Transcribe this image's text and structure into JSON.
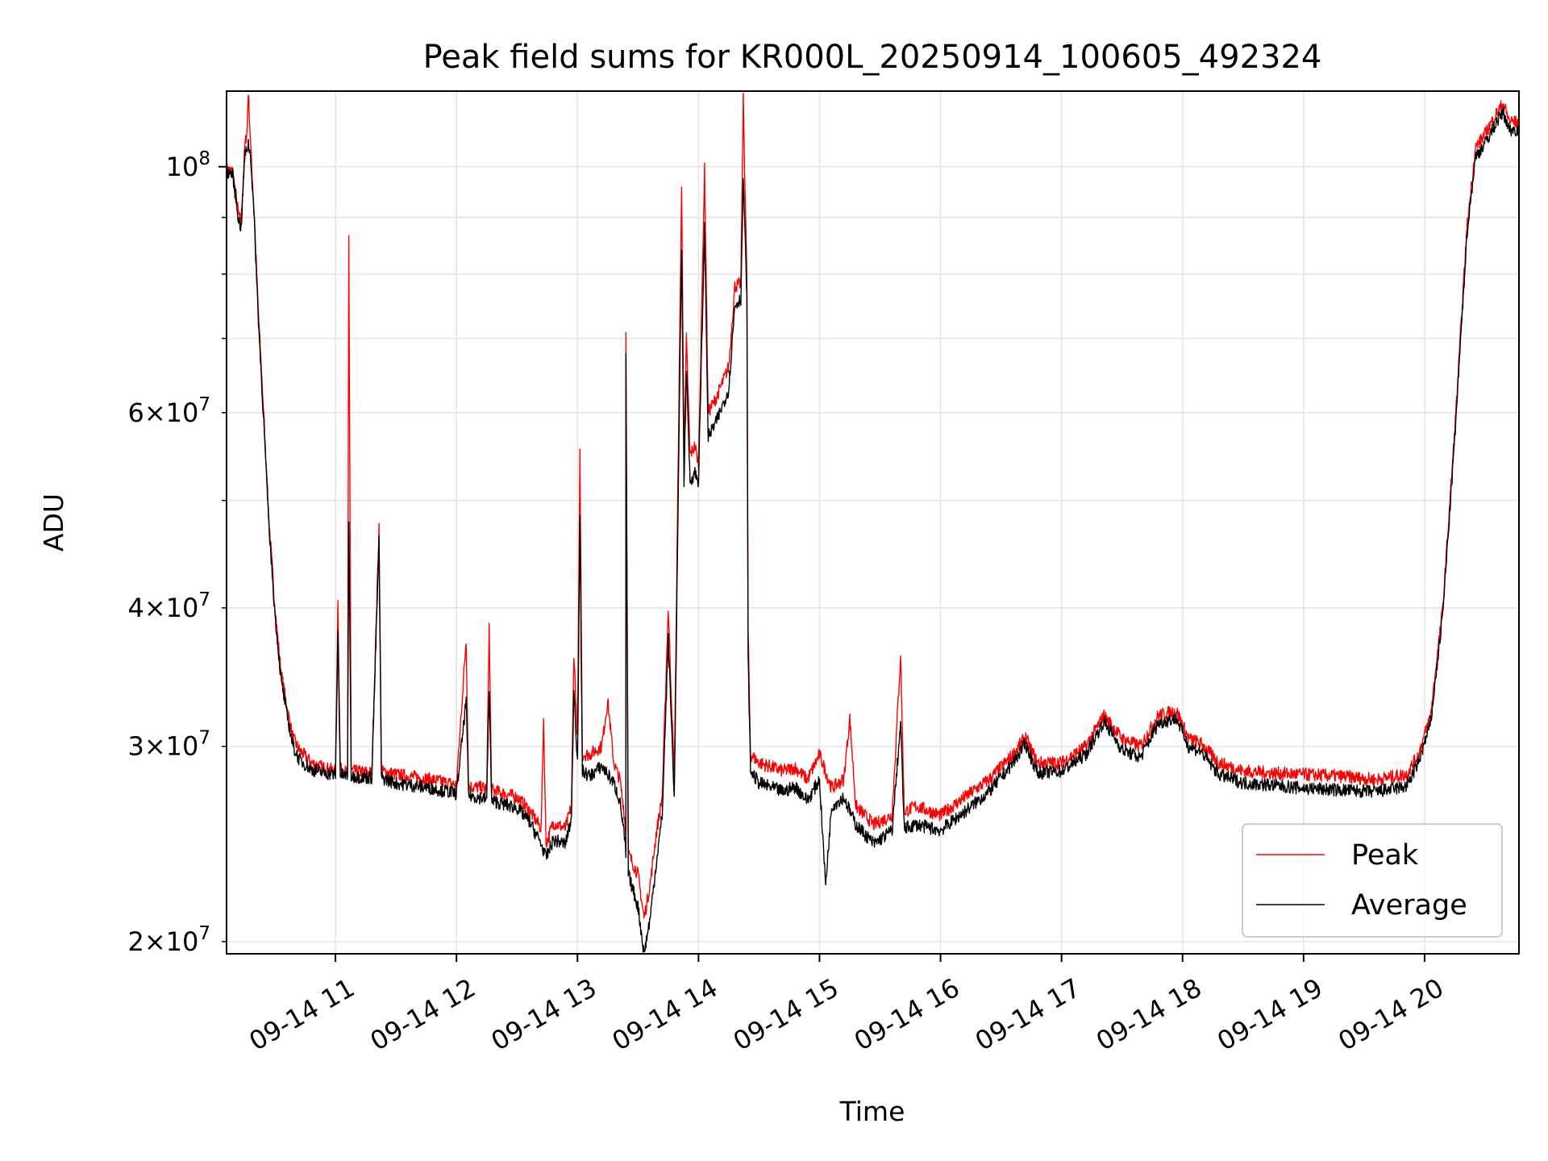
{
  "chart_data": {
    "type": "line",
    "title": "Peak field sums for KR000L_20250914_100605_492324",
    "xlabel": "Time",
    "ylabel": "ADU",
    "yscale": "log",
    "xlim": [
      "09-14 10:06",
      "09-14 20:45"
    ],
    "ylim": [
      19500000,
      117000000
    ],
    "grid": true,
    "legend_position": "lower-right",
    "x_ticks": [
      {
        "label": "09-14 11",
        "hour": 11
      },
      {
        "label": "09-14 12",
        "hour": 12
      },
      {
        "label": "09-14 13",
        "hour": 13
      },
      {
        "label": "09-14 14",
        "hour": 14
      },
      {
        "label": "09-14 15",
        "hour": 15
      },
      {
        "label": "09-14 16",
        "hour": 16
      },
      {
        "label": "09-14 17",
        "hour": 17
      },
      {
        "label": "09-14 18",
        "hour": 18
      },
      {
        "label": "09-14 19",
        "hour": 19
      },
      {
        "label": "09-14 20",
        "hour": 20
      }
    ],
    "y_ticks_major": [
      {
        "value": 100000000,
        "base": "10",
        "exp": "8",
        "mantissa": ""
      }
    ],
    "y_ticks_minor": [
      {
        "value": 20000000,
        "mantissa": "2",
        "base": "10",
        "exp": "7"
      },
      {
        "value": 30000000,
        "mantissa": "3",
        "base": "10",
        "exp": "7"
      },
      {
        "value": 40000000,
        "mantissa": "4",
        "base": "10",
        "exp": "7"
      },
      {
        "value": 50000000,
        "mantissa": "",
        "base": "",
        "exp": ""
      },
      {
        "value": 60000000,
        "mantissa": "6",
        "base": "10",
        "exp": "7"
      },
      {
        "value": 70000000,
        "mantissa": "",
        "base": "",
        "exp": ""
      },
      {
        "value": 80000000,
        "mantissa": "",
        "base": "",
        "exp": ""
      },
      {
        "value": 90000000,
        "mantissa": "",
        "base": "",
        "exp": ""
      }
    ],
    "x_unit": "hour of 09-14",
    "series": [
      {
        "name": "Peak",
        "color": "#ff0000",
        "points": [
          [
            10.1,
            99500000
          ],
          [
            10.15,
            99000000
          ],
          [
            10.2,
            90500000
          ],
          [
            10.22,
            89000000
          ],
          [
            10.25,
            104000000
          ],
          [
            10.27,
            108000000
          ],
          [
            10.28,
            117000000
          ],
          [
            10.3,
            104000000
          ],
          [
            10.33,
            90000000
          ],
          [
            10.36,
            75000000
          ],
          [
            10.4,
            62000000
          ],
          [
            10.45,
            48000000
          ],
          [
            10.5,
            40000000
          ],
          [
            10.55,
            35000000
          ],
          [
            10.6,
            32500000
          ],
          [
            10.65,
            30500000
          ],
          [
            10.7,
            29800000
          ],
          [
            10.8,
            29000000
          ],
          [
            10.9,
            28700000
          ],
          [
            11.0,
            28500000
          ],
          [
            11.02,
            40500000
          ],
          [
            11.04,
            28600000
          ],
          [
            11.1,
            28400000
          ],
          [
            11.11,
            86500000
          ],
          [
            11.13,
            28500000
          ],
          [
            11.3,
            28400000
          ],
          [
            11.36,
            47500000
          ],
          [
            11.38,
            28500000
          ],
          [
            11.5,
            28300000
          ],
          [
            11.8,
            28000000
          ],
          [
            12.0,
            27700000
          ],
          [
            12.08,
            37500000
          ],
          [
            12.1,
            27600000
          ],
          [
            12.25,
            27500000
          ],
          [
            12.27,
            38500000
          ],
          [
            12.29,
            27400000
          ],
          [
            12.5,
            27000000
          ],
          [
            12.6,
            26300000
          ],
          [
            12.7,
            25300000
          ],
          [
            12.72,
            31800000
          ],
          [
            12.74,
            24500000
          ],
          [
            12.8,
            25600000
          ],
          [
            12.9,
            25300000
          ],
          [
            12.95,
            26500000
          ],
          [
            12.97,
            36500000
          ],
          [
            13.0,
            30500000
          ],
          [
            13.02,
            55000000
          ],
          [
            13.04,
            29500000
          ],
          [
            13.1,
            29500000
          ],
          [
            13.2,
            30000000
          ],
          [
            13.25,
            33000000
          ],
          [
            13.3,
            29000000
          ],
          [
            13.35,
            28000000
          ],
          [
            13.38,
            26500000
          ],
          [
            13.4,
            25000000
          ],
          [
            13.4,
            71500000
          ],
          [
            13.42,
            24000000
          ],
          [
            13.5,
            23000000
          ],
          [
            13.55,
            21000000
          ],
          [
            13.6,
            22500000
          ],
          [
            13.65,
            25000000
          ],
          [
            13.7,
            27000000
          ],
          [
            13.75,
            40000000
          ],
          [
            13.8,
            28000000
          ],
          [
            13.86,
            96000000
          ],
          [
            13.88,
            55000000
          ],
          [
            13.9,
            70000000
          ],
          [
            13.93,
            55000000
          ],
          [
            13.97,
            56000000
          ],
          [
            14.0,
            54000000
          ],
          [
            14.05,
            99500000
          ],
          [
            14.08,
            60000000
          ],
          [
            14.15,
            62000000
          ],
          [
            14.25,
            66000000
          ],
          [
            14.3,
            78000000
          ],
          [
            14.35,
            78500000
          ],
          [
            14.37,
            115000000
          ],
          [
            14.4,
            79000000
          ],
          [
            14.41,
            38000000
          ],
          [
            14.43,
            29500000
          ],
          [
            14.5,
            29000000
          ],
          [
            14.7,
            28500000
          ],
          [
            14.8,
            28700000
          ],
          [
            14.9,
            28000000
          ],
          [
            15.0,
            29500000
          ],
          [
            15.1,
            27500000
          ],
          [
            15.2,
            28000000
          ],
          [
            15.25,
            31800000
          ],
          [
            15.3,
            26500000
          ],
          [
            15.45,
            25500000
          ],
          [
            15.6,
            26000000
          ],
          [
            15.67,
            36300000
          ],
          [
            15.7,
            26200000
          ],
          [
            15.8,
            26500000
          ],
          [
            16.0,
            26000000
          ],
          [
            16.2,
            27000000
          ],
          [
            16.4,
            28000000
          ],
          [
            16.6,
            29500000
          ],
          [
            16.7,
            30600000
          ],
          [
            16.8,
            29000000
          ],
          [
            17.0,
            29000000
          ],
          [
            17.2,
            30000000
          ],
          [
            17.35,
            32000000
          ],
          [
            17.5,
            30500000
          ],
          [
            17.65,
            30000000
          ],
          [
            17.8,
            32000000
          ],
          [
            17.95,
            32300000
          ],
          [
            18.05,
            30500000
          ],
          [
            18.15,
            30200000
          ],
          [
            18.3,
            29000000
          ],
          [
            18.5,
            28500000
          ],
          [
            18.7,
            28400000
          ],
          [
            19.0,
            28300000
          ],
          [
            19.3,
            28200000
          ],
          [
            19.6,
            28000000
          ],
          [
            19.85,
            28300000
          ],
          [
            19.95,
            29500000
          ],
          [
            20.05,
            32000000
          ],
          [
            20.15,
            40000000
          ],
          [
            20.25,
            58000000
          ],
          [
            20.35,
            88000000
          ],
          [
            20.42,
            104000000
          ],
          [
            20.5,
            107000000
          ],
          [
            20.6,
            112000000
          ],
          [
            20.65,
            114000000
          ],
          [
            20.7,
            110000000
          ],
          [
            20.78,
            109500000
          ]
        ]
      },
      {
        "name": "Average",
        "color": "#000000",
        "points": [
          [
            10.1,
            99000000
          ],
          [
            10.15,
            98500000
          ],
          [
            10.2,
            89500000
          ],
          [
            10.22,
            88000000
          ],
          [
            10.25,
            102000000
          ],
          [
            10.28,
            105000000
          ],
          [
            10.3,
            102000000
          ],
          [
            10.33,
            89000000
          ],
          [
            10.36,
            74000000
          ],
          [
            10.4,
            61000000
          ],
          [
            10.45,
            47500000
          ],
          [
            10.5,
            39500000
          ],
          [
            10.55,
            34500000
          ],
          [
            10.6,
            32000000
          ],
          [
            10.65,
            30000000
          ],
          [
            10.7,
            29200000
          ],
          [
            10.8,
            28600000
          ],
          [
            10.9,
            28400000
          ],
          [
            11.0,
            28300000
          ],
          [
            11.02,
            38000000
          ],
          [
            11.04,
            28300000
          ],
          [
            11.1,
            28200000
          ],
          [
            11.11,
            48000000
          ],
          [
            11.13,
            28200000
          ],
          [
            11.3,
            28100000
          ],
          [
            11.36,
            46000000
          ],
          [
            11.38,
            28100000
          ],
          [
            11.5,
            27800000
          ],
          [
            11.8,
            27500000
          ],
          [
            12.0,
            27200000
          ],
          [
            12.08,
            33000000
          ],
          [
            12.1,
            27100000
          ],
          [
            12.25,
            26900000
          ],
          [
            12.27,
            34000000
          ],
          [
            12.29,
            26800000
          ],
          [
            12.5,
            26400000
          ],
          [
            12.6,
            25700000
          ],
          [
            12.7,
            24500000
          ],
          [
            12.74,
            23800000
          ],
          [
            12.8,
            24700000
          ],
          [
            12.9,
            24500000
          ],
          [
            12.95,
            25800000
          ],
          [
            12.97,
            34000000
          ],
          [
            13.0,
            29000000
          ],
          [
            13.02,
            48000000
          ],
          [
            13.04,
            28500000
          ],
          [
            13.1,
            28200000
          ],
          [
            13.2,
            28800000
          ],
          [
            13.3,
            27800000
          ],
          [
            13.35,
            26800000
          ],
          [
            13.38,
            25300000
          ],
          [
            13.4,
            24000000
          ],
          [
            13.4,
            67000000
          ],
          [
            13.42,
            23000000
          ],
          [
            13.5,
            21500000
          ],
          [
            13.55,
            19500000
          ],
          [
            13.6,
            21000000
          ],
          [
            13.65,
            23500000
          ],
          [
            13.7,
            26000000
          ],
          [
            13.75,
            37500000
          ],
          [
            13.8,
            27000000
          ],
          [
            13.86,
            85000000
          ],
          [
            13.88,
            52000000
          ],
          [
            13.9,
            66000000
          ],
          [
            13.93,
            52000000
          ],
          [
            13.97,
            53000000
          ],
          [
            14.0,
            52000000
          ],
          [
            14.05,
            88000000
          ],
          [
            14.08,
            57000000
          ],
          [
            14.15,
            59000000
          ],
          [
            14.25,
            63000000
          ],
          [
            14.3,
            75000000
          ],
          [
            14.35,
            76000000
          ],
          [
            14.37,
            98000000
          ],
          [
            14.4,
            76000000
          ],
          [
            14.41,
            36000000
          ],
          [
            14.43,
            28500000
          ],
          [
            14.5,
            27800000
          ],
          [
            14.7,
            27300000
          ],
          [
            14.8,
            27600000
          ],
          [
            14.9,
            26800000
          ],
          [
            15.0,
            28000000
          ],
          [
            15.05,
            22500000
          ],
          [
            15.1,
            26500000
          ],
          [
            15.2,
            27000000
          ],
          [
            15.3,
            25500000
          ],
          [
            15.45,
            24500000
          ],
          [
            15.6,
            25200000
          ],
          [
            15.67,
            31500000
          ],
          [
            15.7,
            25300000
          ],
          [
            15.8,
            25500000
          ],
          [
            16.0,
            25200000
          ],
          [
            16.2,
            26200000
          ],
          [
            16.4,
            27300000
          ],
          [
            16.6,
            29000000
          ],
          [
            16.7,
            30200000
          ],
          [
            16.8,
            28400000
          ],
          [
            17.0,
            28500000
          ],
          [
            17.2,
            29500000
          ],
          [
            17.35,
            31600000
          ],
          [
            17.5,
            29800000
          ],
          [
            17.65,
            29300000
          ],
          [
            17.8,
            31500000
          ],
          [
            17.95,
            31800000
          ],
          [
            18.05,
            30000000
          ],
          [
            18.15,
            29700000
          ],
          [
            18.3,
            28300000
          ],
          [
            18.5,
            27800000
          ],
          [
            18.7,
            27700000
          ],
          [
            19.0,
            27500000
          ],
          [
            19.3,
            27400000
          ],
          [
            19.6,
            27300000
          ],
          [
            19.85,
            27600000
          ],
          [
            19.95,
            29000000
          ],
          [
            20.05,
            31500000
          ],
          [
            20.15,
            39500000
          ],
          [
            20.25,
            57000000
          ],
          [
            20.35,
            87000000
          ],
          [
            20.42,
            102000000
          ],
          [
            20.5,
            105000000
          ],
          [
            20.6,
            110000000
          ],
          [
            20.65,
            112000000
          ],
          [
            20.7,
            108000000
          ],
          [
            20.78,
            108000000
          ]
        ]
      }
    ]
  }
}
